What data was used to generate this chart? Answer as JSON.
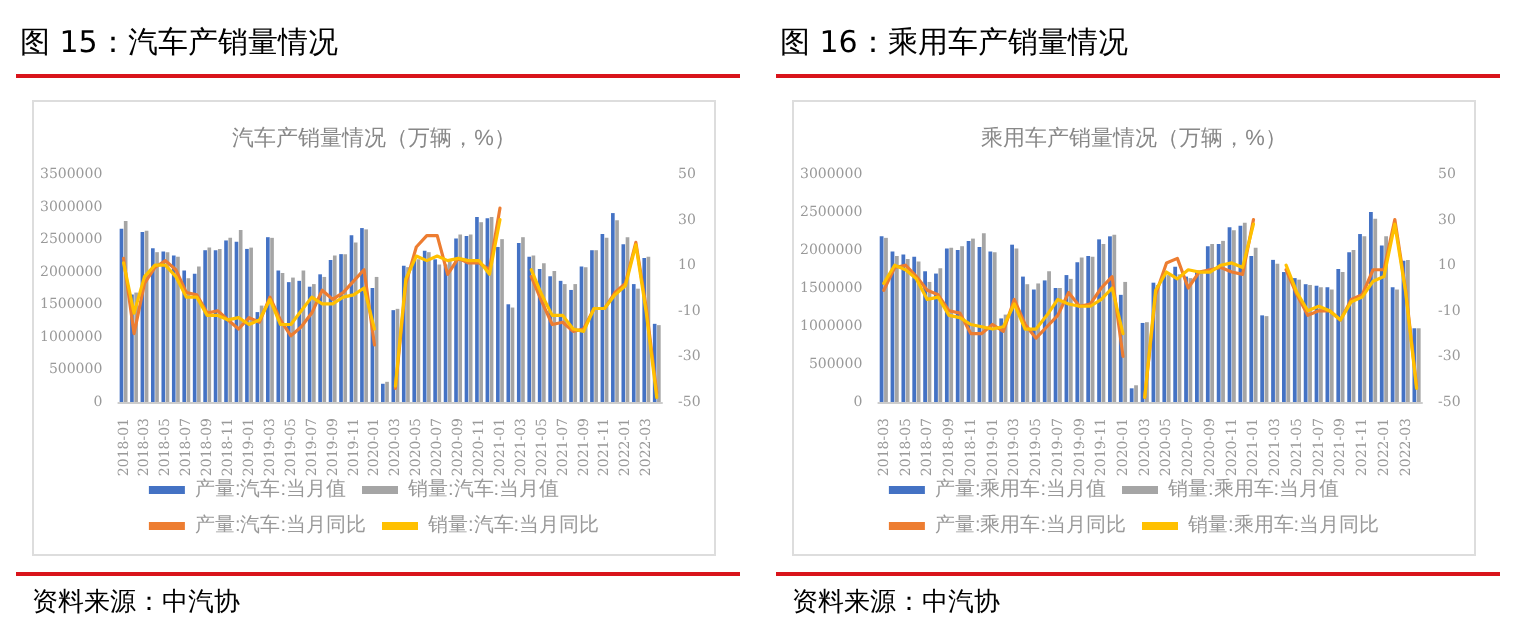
{
  "chart_data": [
    {
      "type": "bar",
      "title": "图 15：汽车产销量情况",
      "subtitle": "汽车产销量情况（万辆，%）",
      "annotations": [
        "资料来源：中汽协"
      ],
      "categories": [
        "2018-01",
        null,
        "2018-03",
        null,
        "2018-05",
        null,
        "2018-07",
        null,
        "2018-09",
        null,
        "2018-11",
        null,
        "2019-01",
        null,
        "2019-03",
        null,
        "2019-05",
        null,
        "2019-07",
        null,
        "2019-09",
        null,
        "2019-11",
        null,
        "2020-01",
        null,
        "2020-03",
        null,
        "2020-05",
        null,
        "2020-07",
        null,
        "2020-09",
        null,
        "2020-11",
        null,
        "2021-01",
        null,
        "2021-03",
        null,
        "2021-05",
        null,
        "2021-07",
        null,
        "2021-09",
        null,
        "2021-11",
        null,
        "2022-01",
        null,
        "2022-03",
        null
      ],
      "series": [
        {
          "name": "产量:汽车:当月值",
          "color": "#4472c4",
          "values": [
            2660000,
            1650000,
            2610000,
            2360000,
            2310000,
            2250000,
            2020000,
            1970000,
            2330000,
            2330000,
            2480000,
            2460000,
            2350000,
            1380000,
            2530000,
            2020000,
            1840000,
            1860000,
            1770000,
            1960000,
            2180000,
            2270000,
            2560000,
            2670000,
            1750000,
            280000,
            1410000,
            2090000,
            2190000,
            2320000,
            2190000,
            2110000,
            2510000,
            2550000,
            2840000,
            2820000,
            2380000,
            1500000,
            2440000,
            2230000,
            2040000,
            1930000,
            1860000,
            1720000,
            2080000,
            2330000,
            2580000,
            2900000,
            2420000,
            1810000,
            2210000,
            1200000
          ]
        },
        {
          "name": "销量:汽车:当月值",
          "color": "#a5a5a5",
          "values": [
            2780000,
            1680000,
            2630000,
            2300000,
            2300000,
            2230000,
            1900000,
            2080000,
            2370000,
            2350000,
            2520000,
            2640000,
            2370000,
            1480000,
            2520000,
            1980000,
            1910000,
            2020000,
            1810000,
            1920000,
            2250000,
            2270000,
            2450000,
            2650000,
            1920000,
            310000,
            1430000,
            2070000,
            2190000,
            2300000,
            2110000,
            2180000,
            2570000,
            2570000,
            2760000,
            2840000,
            2500000,
            1450000,
            2530000,
            2250000,
            2130000,
            2010000,
            1810000,
            1810000,
            2070000,
            2330000,
            2520000,
            2790000,
            2530000,
            1740000,
            2230000,
            1180000
          ]
        },
        {
          "name": "产量:汽车:当月同比",
          "type": "line",
          "axis": "y2",
          "color": "#ed7d31",
          "values": [
            13,
            -20,
            2,
            9,
            12,
            8,
            -2,
            -3,
            -11,
            -10,
            -14,
            -18,
            -13,
            -15,
            -4,
            -14,
            -21,
            -17,
            -11,
            -1,
            -5,
            -2,
            3,
            8,
            -25,
            null,
            -44,
            2,
            18,
            23,
            23,
            6,
            13,
            11,
            11,
            8,
            35,
            null,
            null,
            5,
            -6,
            -16,
            -15,
            -19,
            -18,
            -9,
            -9,
            -2,
            2,
            20,
            -9,
            -46
          ]
        },
        {
          "name": "销量:汽车:当月同比",
          "type": "line",
          "axis": "y2",
          "color": "#ffc000",
          "values": [
            11,
            -11,
            5,
            10,
            10,
            5,
            -4,
            -4,
            -12,
            -12,
            -14,
            -13,
            -16,
            -14,
            -5,
            -16,
            -16,
            -10,
            -4,
            -7,
            -7,
            -4,
            -3,
            0,
            -18,
            null,
            -43,
            4,
            14,
            12,
            14,
            12,
            13,
            12,
            12,
            6,
            30,
            null,
            null,
            8,
            -3,
            -12,
            -12,
            -18,
            -19,
            -9,
            -9,
            -3,
            1,
            19,
            -11,
            -48
          ]
        }
      ],
      "ylim": [
        0,
        3500000
      ],
      "yticks": [
        0,
        500000,
        1000000,
        1500000,
        2000000,
        2500000,
        3000000,
        3500000
      ],
      "y2lim": [
        -50,
        50
      ],
      "y2ticks": [
        -50,
        -30,
        -10,
        10,
        30,
        50
      ],
      "legend": "bottom",
      "marker": "none"
    },
    {
      "type": "bar",
      "title": "图 16：乘用车产销量情况",
      "subtitle": "乘用车产销量情况（万辆，%）",
      "annotations": [
        "资料来源：中汽协"
      ],
      "categories": [
        "2018-03",
        null,
        "2018-05",
        null,
        "2018-07",
        null,
        "2018-09",
        null,
        "2018-11",
        null,
        "2019-01",
        null,
        "2019-03",
        null,
        "2019-05",
        null,
        "2019-07",
        null,
        "2019-09",
        null,
        "2019-11",
        null,
        "2020-01",
        null,
        "2020-03",
        null,
        "2020-05",
        null,
        "2020-07",
        null,
        "2020-09",
        null,
        "2020-11",
        null,
        "2021-01",
        null,
        "2021-03",
        null,
        "2021-05",
        null,
        "2021-07",
        null,
        "2021-09",
        null,
        "2021-11",
        null,
        "2022-01",
        null,
        "2022-03",
        null
      ],
      "series": [
        {
          "name": "产量:乘用车:当月值",
          "color": "#4472c4",
          "values": [
            2180000,
            1980000,
            1940000,
            1910000,
            1720000,
            1690000,
            2020000,
            2000000,
            2120000,
            2040000,
            1980000,
            1100000,
            2070000,
            1650000,
            1480000,
            1600000,
            1500000,
            1670000,
            1840000,
            1920000,
            2140000,
            2180000,
            1410000,
            180000,
            1040000,
            1570000,
            1670000,
            1780000,
            1650000,
            1730000,
            2050000,
            2080000,
            2300000,
            2320000,
            1920000,
            1140000,
            1870000,
            1710000,
            1630000,
            1550000,
            1530000,
            1510000,
            1750000,
            1970000,
            2210000,
            2500000,
            2060000,
            1510000,
            1860000,
            970000
          ]
        },
        {
          "name": "销量:乘用车:当月值",
          "color": "#a5a5a5",
          "values": [
            2160000,
            1920000,
            1880000,
            1850000,
            1580000,
            1760000,
            2030000,
            2050000,
            2150000,
            2220000,
            1970000,
            1150000,
            2020000,
            1550000,
            1560000,
            1720000,
            1500000,
            1620000,
            1900000,
            1910000,
            2080000,
            2200000,
            1580000,
            220000,
            1050000,
            1540000,
            1670000,
            1680000,
            1630000,
            1710000,
            2080000,
            2120000,
            2260000,
            2360000,
            2030000,
            1130000,
            1820000,
            1700000,
            1610000,
            1540000,
            1510000,
            1480000,
            1710000,
            2000000,
            2180000,
            2410000,
            2180000,
            1480000,
            1870000,
            970000
          ]
        },
        {
          "name": "产量:乘用车:当月同比",
          "type": "line",
          "axis": "y2",
          "color": "#ed7d31",
          "values": [
            -1,
            9,
            10,
            5,
            -1,
            -3,
            -10,
            -11,
            -20,
            -20,
            -16,
            -19,
            -5,
            -16,
            -22,
            -17,
            -12,
            -2,
            -8,
            -7,
            0,
            5,
            -30,
            null,
            -48,
            -3,
            11,
            13,
            0,
            7,
            8,
            9,
            7,
            6,
            30,
            null,
            null,
            8,
            -3,
            -12,
            -10,
            -10,
            -14,
            -5,
            -3,
            8,
            8,
            30,
            -1,
            -43
          ]
        },
        {
          "name": "销量:乘用车:当月同比",
          "type": "line",
          "axis": "y2",
          "color": "#ffc000",
          "values": [
            2,
            10,
            8,
            4,
            -5,
            -4,
            -12,
            -13,
            -16,
            -17,
            -18,
            -17,
            -7,
            -18,
            -18,
            -12,
            -5,
            -7,
            -8,
            -8,
            -5,
            0,
            -20,
            null,
            -48,
            -1,
            7,
            4,
            8,
            7,
            7,
            10,
            11,
            9,
            28,
            null,
            null,
            10,
            -2,
            -10,
            -8,
            -10,
            -14,
            -6,
            -4,
            3,
            5,
            28,
            -2,
            -44
          ]
        }
      ],
      "ylim": [
        0,
        3000000
      ],
      "yticks": [
        0,
        500000,
        1000000,
        1500000,
        2000000,
        2500000,
        3000000
      ],
      "y2lim": [
        -50,
        50
      ],
      "y2ticks": [
        -50,
        -30,
        -10,
        10,
        30,
        50
      ],
      "legend": "bottom",
      "marker": "none"
    }
  ]
}
